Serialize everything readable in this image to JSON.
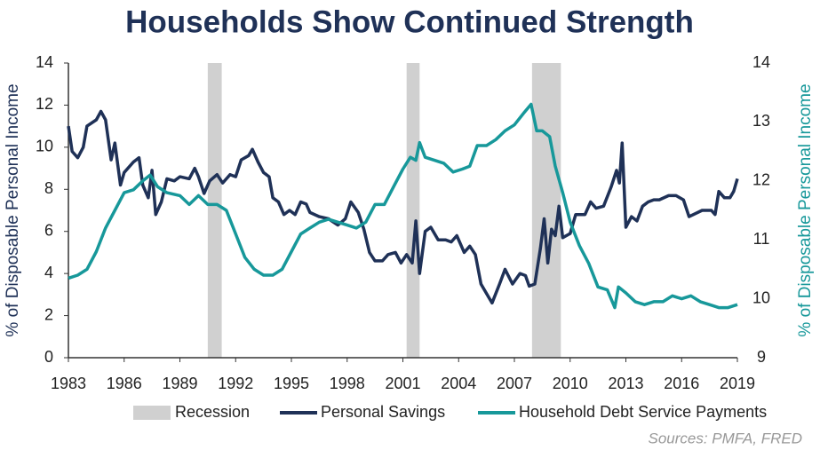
{
  "chart_data": {
    "type": "line",
    "title": "Households Show Continued Strength",
    "ylabel": "% of Disposable Personal Income",
    "y2label": "% of Disposable Personal Income",
    "source": "Sources: PMFA, FRED",
    "xlim": [
      1983,
      2019
    ],
    "xticks": [
      1983,
      1986,
      1989,
      1992,
      1995,
      1998,
      2001,
      2004,
      2007,
      2010,
      2013,
      2016,
      2019
    ],
    "ylim": [
      0,
      14
    ],
    "yticks": [
      0,
      2,
      4,
      6,
      8,
      10,
      12,
      14
    ],
    "y2lim": [
      9,
      14
    ],
    "y2ticks": [
      9,
      10,
      11,
      12,
      13,
      14
    ],
    "recessions": {
      "name": "Recession",
      "color": "#d0d0d0",
      "spans": [
        [
          1990.5,
          1991.25
        ],
        [
          2001.2,
          2001.9
        ],
        [
          2007.95,
          2009.5
        ]
      ]
    },
    "series": [
      {
        "name": "Personal Savings",
        "color": "#1f3157",
        "x": [
          1983.0,
          1983.2,
          1983.5,
          1983.8,
          1984.0,
          1984.5,
          1984.75,
          1985.0,
          1985.3,
          1985.5,
          1985.8,
          1986.0,
          1986.5,
          1986.8,
          1987.0,
          1987.3,
          1987.5,
          1987.7,
          1988.0,
          1988.3,
          1988.7,
          1989.0,
          1989.5,
          1989.8,
          1990.0,
          1990.3,
          1990.6,
          1991.0,
          1991.3,
          1991.7,
          1992.0,
          1992.3,
          1992.7,
          1992.9,
          1993.2,
          1993.5,
          1993.8,
          1994.0,
          1994.3,
          1994.6,
          1994.9,
          1995.2,
          1995.5,
          1995.8,
          1996.0,
          1996.5,
          1997.0,
          1997.5,
          1997.9,
          1998.2,
          1998.6,
          1998.9,
          1999.2,
          1999.5,
          1999.9,
          2000.2,
          2000.6,
          2000.9,
          2001.2,
          2001.5,
          2001.7,
          2001.9,
          2002.2,
          2002.5,
          2002.9,
          2003.3,
          2003.6,
          2003.9,
          2004.3,
          2004.6,
          2004.9,
          2005.2,
          2005.6,
          2005.8,
          2006.2,
          2006.5,
          2006.9,
          2007.3,
          2007.6,
          2007.8,
          2008.1,
          2008.4,
          2008.6,
          2008.8,
          2009.0,
          2009.2,
          2009.4,
          2009.6,
          2010.0,
          2010.3,
          2010.8,
          2011.1,
          2011.4,
          2011.8,
          2012.2,
          2012.5,
          2012.65,
          2012.8,
          2013.0,
          2013.3,
          2013.6,
          2013.9,
          2014.2,
          2014.5,
          2014.8,
          2015.3,
          2015.7,
          2016.1,
          2016.4,
          2017.1,
          2017.6,
          2017.8,
          2018.0,
          2018.3,
          2018.6,
          2018.8,
          2019.0
        ],
        "values": [
          11.0,
          9.8,
          9.5,
          10.0,
          11.0,
          11.3,
          11.7,
          11.3,
          9.4,
          10.2,
          8.2,
          8.8,
          9.3,
          9.5,
          8.2,
          7.6,
          8.9,
          6.8,
          7.4,
          8.5,
          8.4,
          8.6,
          8.5,
          9.0,
          8.6,
          7.8,
          8.4,
          8.7,
          8.3,
          8.7,
          8.6,
          9.4,
          9.6,
          9.9,
          9.3,
          8.8,
          8.6,
          7.6,
          7.4,
          6.8,
          7.0,
          6.8,
          7.4,
          7.3,
          6.9,
          6.7,
          6.6,
          6.3,
          6.6,
          7.4,
          6.9,
          6.1,
          5.0,
          4.6,
          4.6,
          4.9,
          5.0,
          4.5,
          4.9,
          4.5,
          6.5,
          4.0,
          6.0,
          6.2,
          5.6,
          5.6,
          5.5,
          5.8,
          5.0,
          5.3,
          4.9,
          3.5,
          2.9,
          2.6,
          3.5,
          4.2,
          3.5,
          4.0,
          3.9,
          3.4,
          3.5,
          5.2,
          6.6,
          4.5,
          6.1,
          5.8,
          7.2,
          5.7,
          5.9,
          6.8,
          6.8,
          7.4,
          7.1,
          7.2,
          8.1,
          8.9,
          8.3,
          10.2,
          6.2,
          6.7,
          6.5,
          7.2,
          7.4,
          7.5,
          7.5,
          7.7,
          7.7,
          7.5,
          6.7,
          7.0,
          7.0,
          6.8,
          7.9,
          7.6,
          7.6,
          7.9,
          8.5
        ]
      },
      {
        "name": "Household Debt Service Payments",
        "color": "#17989a",
        "axis": "y2",
        "x": [
          1983.0,
          1983.5,
          1984.0,
          1984.5,
          1985.0,
          1985.5,
          1986.0,
          1986.5,
          1987.0,
          1987.4,
          1987.8,
          1988.3,
          1989.0,
          1989.5,
          1990.0,
          1990.5,
          1991.0,
          1991.5,
          1992.0,
          1992.5,
          1993.0,
          1993.5,
          1994.0,
          1994.5,
          1995.0,
          1995.5,
          1996.0,
          1996.5,
          1997.0,
          1997.5,
          1998.0,
          1998.5,
          1999.0,
          1999.5,
          2000.0,
          2000.5,
          2001.0,
          2001.4,
          2001.7,
          2001.9,
          2002.2,
          2002.7,
          2003.2,
          2003.7,
          2004.2,
          2004.6,
          2005.0,
          2005.5,
          2006.0,
          2006.5,
          2007.0,
          2007.5,
          2007.9,
          2008.2,
          2008.5,
          2008.9,
          2009.2,
          2009.6,
          2010.0,
          2010.5,
          2011.0,
          2011.5,
          2012.0,
          2012.2,
          2012.4,
          2012.6,
          2013.0,
          2013.5,
          2014.0,
          2014.5,
          2015.0,
          2015.5,
          2016.0,
          2016.5,
          2017.0,
          2017.5,
          2018.0,
          2018.5,
          2019.0
        ],
        "values": [
          10.35,
          10.4,
          10.5,
          10.8,
          11.2,
          11.5,
          11.8,
          11.85,
          12.0,
          12.1,
          11.9,
          11.8,
          11.75,
          11.6,
          11.75,
          11.6,
          11.6,
          11.5,
          11.1,
          10.7,
          10.5,
          10.4,
          10.4,
          10.5,
          10.8,
          11.1,
          11.2,
          11.3,
          11.35,
          11.3,
          11.25,
          11.2,
          11.3,
          11.6,
          11.6,
          11.9,
          12.2,
          12.4,
          12.35,
          12.65,
          12.4,
          12.35,
          12.3,
          12.15,
          12.2,
          12.25,
          12.6,
          12.6,
          12.7,
          12.85,
          12.95,
          13.15,
          13.3,
          12.85,
          12.85,
          12.75,
          12.25,
          11.8,
          11.3,
          10.9,
          10.6,
          10.2,
          10.15,
          10.0,
          9.85,
          10.2,
          10.1,
          9.95,
          9.9,
          9.95,
          9.95,
          10.05,
          10.0,
          10.05,
          9.95,
          9.9,
          9.85,
          9.85,
          9.9
        ]
      }
    ]
  }
}
